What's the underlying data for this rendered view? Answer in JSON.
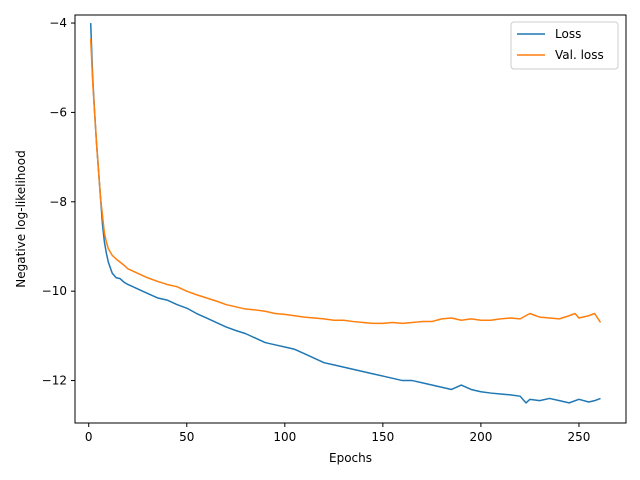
{
  "chart_data": {
    "type": "line",
    "title": "",
    "xlabel": "Epochs",
    "ylabel": "Negative log-likelihood",
    "xlim": [
      -7,
      274
    ],
    "ylim": [
      -12.95,
      -3.82
    ],
    "xticks": [
      0,
      50,
      100,
      150,
      200,
      250
    ],
    "xtick_labels": [
      "0",
      "50",
      "100",
      "150",
      "200",
      "250"
    ],
    "yticks": [
      -4,
      -6,
      -8,
      -10,
      -12
    ],
    "ytick_labels": [
      "−4",
      "−6",
      "−8",
      "−10",
      "−12"
    ],
    "grid": false,
    "legend": "top-right",
    "series": [
      {
        "name": "Loss",
        "color": "#1f77b4",
        "x": [
          1,
          2,
          3,
          4,
          5,
          6,
          7,
          8,
          9,
          10,
          12,
          14,
          16,
          18,
          20,
          25,
          30,
          35,
          40,
          45,
          50,
          55,
          60,
          65,
          70,
          75,
          80,
          85,
          90,
          95,
          100,
          105,
          110,
          115,
          120,
          125,
          130,
          135,
          140,
          145,
          150,
          155,
          160,
          165,
          170,
          175,
          180,
          185,
          190,
          195,
          200,
          205,
          210,
          215,
          220,
          223,
          225,
          230,
          235,
          240,
          245,
          250,
          255,
          258,
          261
        ],
        "values": [
          -4.0,
          -5.2,
          -6.0,
          -6.7,
          -7.3,
          -7.9,
          -8.5,
          -8.9,
          -9.15,
          -9.35,
          -9.6,
          -9.7,
          -9.72,
          -9.8,
          -9.85,
          -9.95,
          -10.05,
          -10.15,
          -10.2,
          -10.3,
          -10.38,
          -10.5,
          -10.6,
          -10.7,
          -10.8,
          -10.88,
          -10.95,
          -11.05,
          -11.15,
          -11.2,
          -11.25,
          -11.3,
          -11.4,
          -11.5,
          -11.6,
          -11.65,
          -11.7,
          -11.75,
          -11.8,
          -11.85,
          -11.9,
          -11.95,
          -12.0,
          -12.0,
          -12.05,
          -12.1,
          -12.15,
          -12.2,
          -12.1,
          -12.2,
          -12.25,
          -12.28,
          -12.3,
          -12.32,
          -12.35,
          -12.5,
          -12.42,
          -12.45,
          -12.4,
          -12.45,
          -12.5,
          -12.42,
          -12.48,
          -12.45,
          -12.4
        ]
      },
      {
        "name": "Val. loss",
        "color": "#ff7f0e",
        "x": [
          1,
          2,
          3,
          4,
          5,
          6,
          7,
          8,
          9,
          10,
          12,
          14,
          16,
          18,
          20,
          25,
          30,
          35,
          40,
          45,
          50,
          55,
          60,
          65,
          70,
          75,
          80,
          85,
          90,
          95,
          100,
          105,
          110,
          115,
          120,
          125,
          130,
          135,
          140,
          145,
          150,
          155,
          160,
          165,
          170,
          175,
          180,
          185,
          190,
          195,
          200,
          205,
          210,
          215,
          220,
          225,
          228,
          230,
          235,
          240,
          245,
          248,
          250,
          255,
          258,
          261
        ],
        "values": [
          -4.35,
          -5.3,
          -6.0,
          -6.7,
          -7.3,
          -7.9,
          -8.3,
          -8.7,
          -8.9,
          -9.05,
          -9.2,
          -9.28,
          -9.35,
          -9.42,
          -9.5,
          -9.6,
          -9.7,
          -9.78,
          -9.85,
          -9.9,
          -10.0,
          -10.08,
          -10.15,
          -10.22,
          -10.3,
          -10.35,
          -10.4,
          -10.42,
          -10.45,
          -10.5,
          -10.52,
          -10.55,
          -10.58,
          -10.6,
          -10.62,
          -10.65,
          -10.65,
          -10.68,
          -10.7,
          -10.72,
          -10.72,
          -10.7,
          -10.72,
          -10.7,
          -10.68,
          -10.68,
          -10.62,
          -10.6,
          -10.65,
          -10.62,
          -10.65,
          -10.65,
          -10.62,
          -10.6,
          -10.62,
          -10.5,
          -10.55,
          -10.58,
          -10.6,
          -10.62,
          -10.55,
          -10.5,
          -10.6,
          -10.55,
          -10.5,
          -10.7
        ]
      }
    ]
  }
}
